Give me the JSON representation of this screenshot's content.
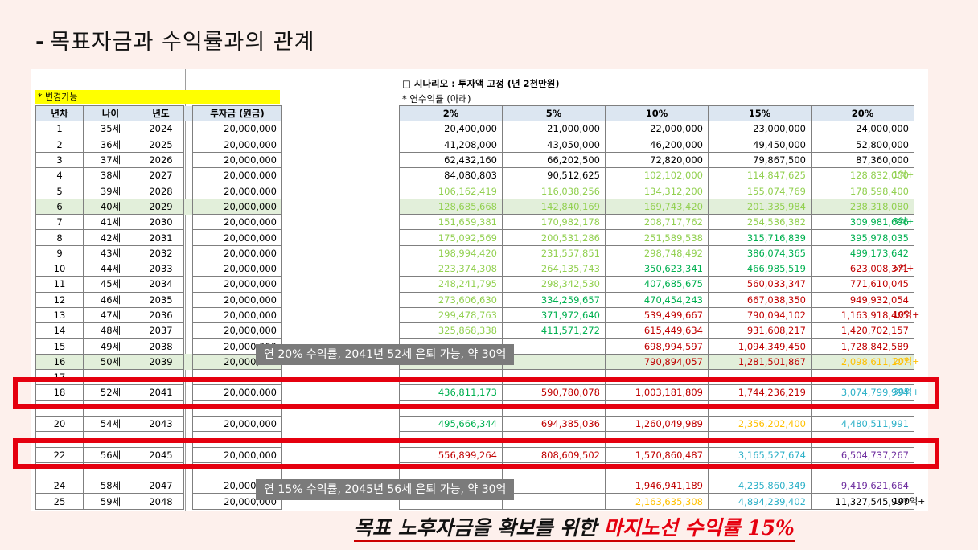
{
  "title": {
    "dash": "-",
    "text": "목표자금과 수익률과의 관계"
  },
  "left": {
    "note": "* 변경가능",
    "headers": [
      "년차",
      "나이",
      "년도",
      "투자금 (원금)"
    ]
  },
  "scenario": {
    "title": "□ 시나리오 : 투자액 고정 (년 2천만원)",
    "subtitle": "* 연수익률 (아래)"
  },
  "rate_headers": [
    "2%",
    "5%",
    "10%",
    "15%",
    "20%"
  ],
  "rows": [
    {
      "yr": "1",
      "age": "35세",
      "year": "2024",
      "inv": "20,000,000",
      "v": [
        "20,400,000",
        "21,000,000",
        "22,000,000",
        "23,000,000",
        "24,000,000"
      ],
      "c": [
        "k",
        "k",
        "k",
        "k",
        "k"
      ]
    },
    {
      "yr": "2",
      "age": "36세",
      "year": "2025",
      "inv": "20,000,000",
      "v": [
        "41,208,000",
        "43,050,000",
        "46,200,000",
        "49,450,000",
        "52,800,000"
      ],
      "c": [
        "k",
        "k",
        "k",
        "k",
        "k"
      ]
    },
    {
      "yr": "3",
      "age": "37세",
      "year": "2026",
      "inv": "20,000,000",
      "v": [
        "62,432,160",
        "66,202,500",
        "72,820,000",
        "79,867,500",
        "87,360,000"
      ],
      "c": [
        "k",
        "k",
        "k",
        "k",
        "k"
      ]
    },
    {
      "yr": "4",
      "age": "38세",
      "year": "2027",
      "inv": "20,000,000",
      "v": [
        "84,080,803",
        "90,512,625",
        "102,102,000",
        "114,847,625",
        "128,832,000"
      ],
      "c": [
        "k",
        "k",
        "g1",
        "g1",
        "g1"
      ]
    },
    {
      "yr": "5",
      "age": "39세",
      "year": "2028",
      "inv": "20,000,000",
      "v": [
        "106,162,419",
        "116,038,256",
        "134,312,200",
        "155,074,769",
        "178,598,400"
      ],
      "c": [
        "g1",
        "g1",
        "g1",
        "g1",
        "g1"
      ]
    },
    {
      "yr": "6",
      "age": "40세",
      "year": "2029",
      "inv": "20,000,000",
      "v": [
        "128,685,668",
        "142,840,169",
        "169,743,420",
        "201,335,984",
        "238,318,080"
      ],
      "c": [
        "g1",
        "g1",
        "g1",
        "g1",
        "g1"
      ],
      "hl": true
    },
    {
      "yr": "7",
      "age": "41세",
      "year": "2030",
      "inv": "20,000,000",
      "v": [
        "151,659,381",
        "170,982,178",
        "208,717,762",
        "254,536,382",
        "309,981,696"
      ],
      "c": [
        "g1",
        "g1",
        "g1",
        "g1",
        "g2"
      ]
    },
    {
      "yr": "8",
      "age": "42세",
      "year": "2031",
      "inv": "20,000,000",
      "v": [
        "175,092,569",
        "200,531,286",
        "251,589,538",
        "315,716,839",
        "395,978,035"
      ],
      "c": [
        "g1",
        "g1",
        "g1",
        "g2",
        "g2"
      ]
    },
    {
      "yr": "9",
      "age": "43세",
      "year": "2032",
      "inv": "20,000,000",
      "v": [
        "198,994,420",
        "231,557,851",
        "298,748,492",
        "386,074,365",
        "499,173,642"
      ],
      "c": [
        "g1",
        "g1",
        "g1",
        "g2",
        "g2"
      ]
    },
    {
      "yr": "10",
      "age": "44세",
      "year": "2033",
      "inv": "20,000,000",
      "v": [
        "223,374,308",
        "264,135,743",
        "350,623,341",
        "466,985,519",
        "623,008,371"
      ],
      "c": [
        "g1",
        "g1",
        "g2",
        "g2",
        "r"
      ]
    },
    {
      "yr": "11",
      "age": "45세",
      "year": "2034",
      "inv": "20,000,000",
      "v": [
        "248,241,795",
        "298,342,530",
        "407,685,675",
        "560,033,347",
        "771,610,045"
      ],
      "c": [
        "g1",
        "g1",
        "g2",
        "r",
        "r"
      ]
    },
    {
      "yr": "12",
      "age": "46세",
      "year": "2035",
      "inv": "20,000,000",
      "v": [
        "273,606,630",
        "334,259,657",
        "470,454,243",
        "667,038,350",
        "949,932,054"
      ],
      "c": [
        "g1",
        "g2",
        "g2",
        "r",
        "r"
      ]
    },
    {
      "yr": "13",
      "age": "47세",
      "year": "2036",
      "inv": "20,000,000",
      "v": [
        "299,478,763",
        "371,972,640",
        "539,499,667",
        "790,094,102",
        "1,163,918,465"
      ],
      "c": [
        "g1",
        "g2",
        "r",
        "r",
        "r"
      ]
    },
    {
      "yr": "14",
      "age": "48세",
      "year": "2037",
      "inv": "20,000,000",
      "v": [
        "325,868,338",
        "411,571,272",
        "615,449,634",
        "931,608,217",
        "1,420,702,157"
      ],
      "c": [
        "g1",
        "g2",
        "r",
        "r",
        "r"
      ]
    },
    {
      "yr": "15",
      "age": "49세",
      "year": "2038",
      "inv": "20,000,000",
      "v": [
        "",
        "",
        "698,994,597",
        "1,094,349,450",
        "1,728,842,589"
      ],
      "c": [
        "g2",
        "g2",
        "r",
        "r",
        "r"
      ]
    },
    {
      "yr": "16",
      "age": "50세",
      "year": "2039",
      "inv": "20,000,000",
      "v": [
        "",
        "",
        "790,894,057",
        "1,281,501,867",
        "2,098,611,107"
      ],
      "c": [
        "g2",
        "g2",
        "r",
        "r",
        "o"
      ],
      "hl": true
    },
    {
      "yr": "17",
      "age": "",
      "year": "",
      "inv": "",
      "v": [
        "",
        "",
        "",
        "",
        ""
      ],
      "c": [
        "g2",
        "g2",
        "r",
        "r",
        "o"
      ]
    },
    {
      "yr": "18",
      "age": "52세",
      "year": "2041",
      "inv": "20,000,000",
      "v": [
        "436,811,173",
        "590,780,078",
        "1,003,181,809",
        "1,744,236,219",
        "3,074,799,994"
      ],
      "c": [
        "g2",
        "r",
        "r",
        "r",
        "b"
      ]
    },
    {
      "yr": "",
      "age": "",
      "year": "",
      "inv": "",
      "v": [
        "",
        "",
        "",
        "",
        ""
      ],
      "c": [
        "g2",
        "r",
        "r",
        "o",
        "b"
      ]
    },
    {
      "yr": "20",
      "age": "54세",
      "year": "2043",
      "inv": "20,000,000",
      "v": [
        "495,666,344",
        "694,385,036",
        "1,260,049,989",
        "2,356,202,400",
        "4,480,511,991"
      ],
      "c": [
        "g2",
        "r",
        "r",
        "o",
        "b"
      ]
    },
    {
      "yr": "",
      "age": "",
      "year": "",
      "inv": "",
      "v": [
        "",
        "",
        "",
        "",
        ""
      ],
      "c": [
        "g2",
        "r",
        "r",
        "o",
        "b"
      ]
    },
    {
      "yr": "22",
      "age": "56세",
      "year": "2045",
      "inv": "20,000,000",
      "v": [
        "556,899,264",
        "808,609,502",
        "1,570,860,487",
        "3,165,527,674",
        "6,504,737,267"
      ],
      "c": [
        "r",
        "r",
        "r",
        "b",
        "p"
      ]
    },
    {
      "yr": "",
      "age": "",
      "year": "",
      "inv": "",
      "v": [
        "",
        "",
        "",
        "",
        ""
      ],
      "c": [
        "r",
        "r",
        "r",
        "b",
        "p"
      ]
    },
    {
      "yr": "24",
      "age": "58세",
      "year": "2047",
      "inv": "20,000,000",
      "v": [
        "",
        "",
        "1,946,941,189",
        "4,235,860,349",
        "9,419,621,664"
      ],
      "c": [
        "r",
        "r",
        "r",
        "b",
        "p"
      ]
    },
    {
      "yr": "25",
      "age": "59세",
      "year": "2048",
      "inv": "20,000,000",
      "v": [
        "",
        "",
        "2,163,635,308",
        "4,894,239,402",
        "11,327,545,997"
      ],
      "c": [
        "r",
        "r",
        "o",
        "b",
        "k"
      ]
    }
  ],
  "side_labels": [
    {
      "row": 3,
      "text": "1억+",
      "color": "#92d050"
    },
    {
      "row": 6,
      "text": "3억+",
      "color": "#00b050"
    },
    {
      "row": 9,
      "text": "5억+",
      "color": "#c00000"
    },
    {
      "row": 12,
      "text": "10억+",
      "color": "#c00000"
    },
    {
      "row": 15,
      "text": "20억+",
      "color": "#ffc000"
    },
    {
      "row": 17,
      "text": "30억+",
      "color": "#2eb1c8"
    },
    {
      "row": 24,
      "text": "100억+",
      "color": "#000000"
    }
  ],
  "overlay1": "연 20% 수익률, 2041년 52세 은퇴 가능, 약 30억",
  "overlay2": "연 15% 수익률, 2045년 56세 은퇴 가능, 약 30억",
  "conclusion": {
    "part1": "목표 노후자금을 확보를 위한 ",
    "part2": "마지노선 수익률 15%"
  },
  "colors": {
    "accent_red": "#e5000f",
    "note_yellow": "#ffff00",
    "header_blue": "#dce6f1",
    "highlight_green": "#e2efda"
  }
}
